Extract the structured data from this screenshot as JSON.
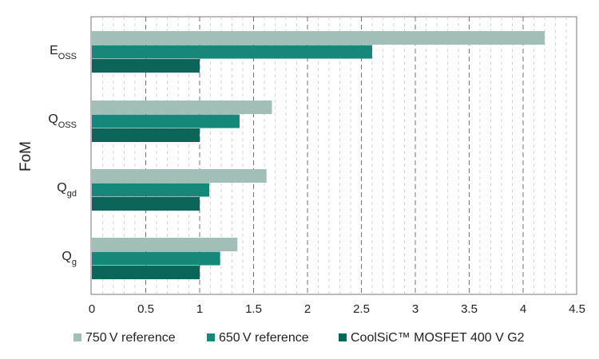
{
  "chart_data": {
    "type": "bar",
    "orientation": "horizontal",
    "ylabel": "FoM",
    "categories": [
      {
        "main": "E",
        "sub": "OSS"
      },
      {
        "main": "Q",
        "sub": "OSS"
      },
      {
        "main": "Q",
        "sub": "gd"
      },
      {
        "main": "Q",
        "sub": "g"
      }
    ],
    "series": [
      {
        "name": "750 V reference",
        "color": "#a1bfb7",
        "values": [
          4.2,
          1.67,
          1.62,
          1.35
        ]
      },
      {
        "name": "650 V reference",
        "color": "#16887a",
        "values": [
          2.6,
          1.37,
          1.09,
          1.19
        ]
      },
      {
        "name": "CoolSiC™ MOSFET 400 V G2",
        "color": "#0c6559",
        "values": [
          1.0,
          1.0,
          1.0,
          1.0
        ]
      }
    ],
    "xlim": [
      0,
      4.5
    ],
    "xticks": [
      0,
      0.5,
      1,
      1.5,
      2,
      2.5,
      3,
      3.5,
      4,
      4.5
    ],
    "xtick_labels": [
      "0",
      "0.5",
      "1",
      "1.5",
      "2",
      "2.5",
      "3",
      "3.5",
      "4",
      "4.5"
    ],
    "grid": "vertical dashed",
    "legend_position": "bottom"
  }
}
